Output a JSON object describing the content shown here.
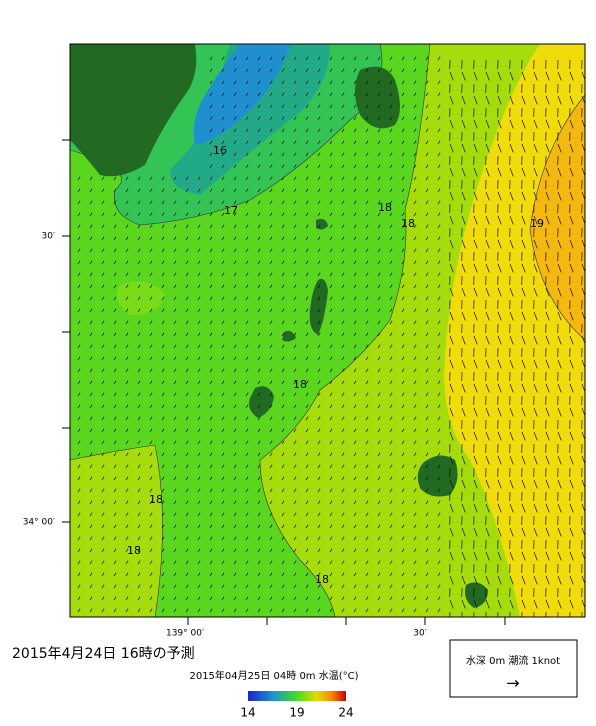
{
  "map": {
    "title": "2015年4月24日 16時の予測",
    "subtitle": "2015年04月25日 04時 0m 水温(°C)",
    "lat_labels": [
      "30′",
      "34° 00′"
    ],
    "lon_labels": [
      "139° 00′",
      "30′"
    ],
    "contour_labels": [
      16,
      17,
      18,
      18,
      19,
      18,
      18,
      18,
      18
    ],
    "colorbar": {
      "range": [
        14,
        24
      ],
      "ticks": [
        14,
        19,
        24
      ]
    },
    "legend": {
      "text": "水深 0m 潮流 1knot",
      "arrow": "→"
    }
  }
}
